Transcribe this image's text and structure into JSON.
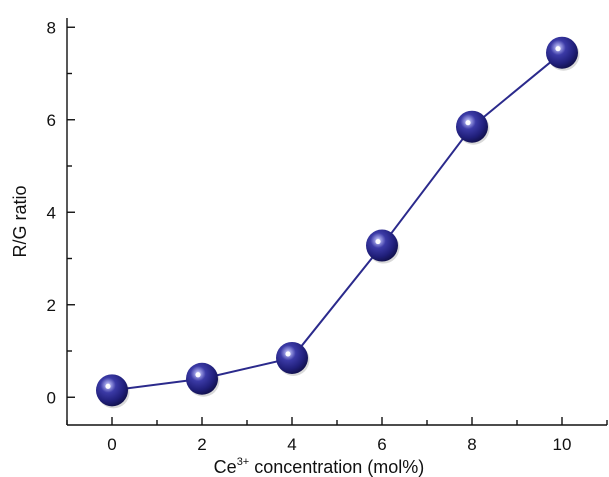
{
  "chart_data": {
    "type": "line",
    "title": "",
    "xlabel": {
      "base": "Ce",
      "sup": "3+",
      "rest": " concentration (mol%)"
    },
    "ylabel": "R/G ratio",
    "xlim": [
      -1,
      11
    ],
    "ylim": [
      -0.6,
      8.2
    ],
    "xticks": [
      "0",
      "2",
      "4",
      "6",
      "8",
      "10"
    ],
    "yticks": [
      "0",
      "2",
      "4",
      "6",
      "8"
    ],
    "grid": false,
    "legend": "none",
    "series": [
      {
        "x": [
          0,
          2,
          4,
          6,
          8,
          10
        ],
        "y": [
          0.15,
          0.4,
          0.85,
          3.28,
          5.85,
          7.45
        ],
        "color": "#2b2a8c",
        "marker": "sphere"
      }
    ]
  }
}
